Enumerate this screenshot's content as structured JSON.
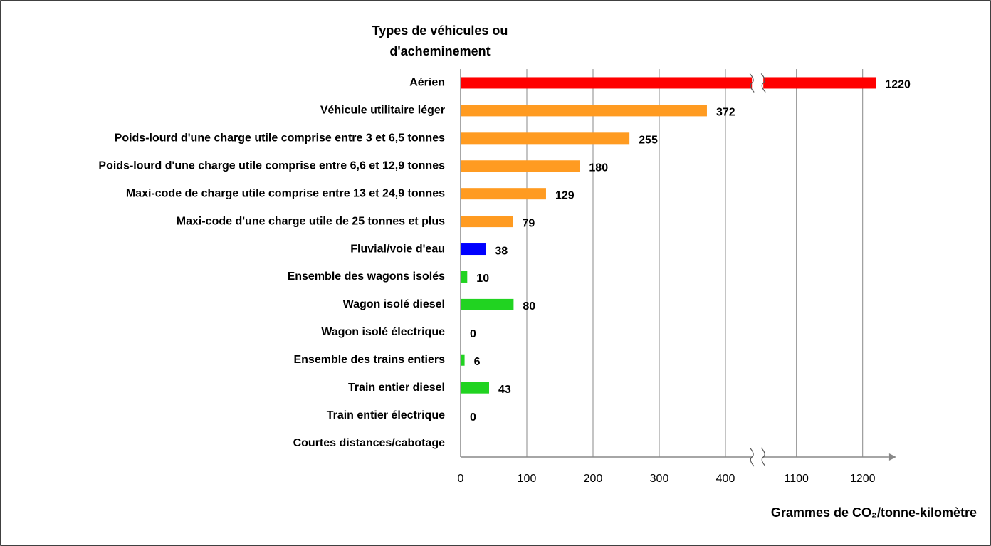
{
  "chart_data": {
    "type": "bar",
    "orientation": "horizontal",
    "y_label": [
      "Types de véhicules ou",
      "d'acheminement"
    ],
    "x_label": "Grammes de CO₂/tonne-kilomètre",
    "categories": [
      "Aérien",
      "Véhicule utilitaire léger",
      "Poids-lourd d'une charge utile comprise entre 3 et 6,5 tonnes",
      "Poids-lourd d'une charge utile comprise entre 6,6 et 12,9 tonnes",
      "Maxi-code de charge utile comprise entre 13 et 24,9 tonnes",
      "Maxi-code d'une charge utile de 25 tonnes et plus",
      "Fluvial/voie d'eau",
      "Ensemble des wagons isolés",
      "Wagon isolé diesel",
      "Wagon isolé électrique",
      "Ensemble des trains entiers",
      "Train entier diesel",
      "Train entier électrique",
      "Courtes distances/cabotage"
    ],
    "values": [
      1220,
      372,
      255,
      180,
      129,
      79,
      38,
      10,
      80,
      0,
      6,
      43,
      0,
      null
    ],
    "colors": [
      "#ff0000",
      "#ff9b21",
      "#ff9b21",
      "#ff9b21",
      "#ff9b21",
      "#ff9b21",
      "#0000ff",
      "#21d321",
      "#21d321",
      "#21d321",
      "#21d321",
      "#21d321",
      "#21d321",
      "#21d321"
    ],
    "xlim": [
      0,
      1240
    ],
    "x_break": [
      440,
      1050
    ],
    "xticks": [
      0,
      100,
      200,
      300,
      400,
      1100,
      1200
    ],
    "grid": true
  }
}
